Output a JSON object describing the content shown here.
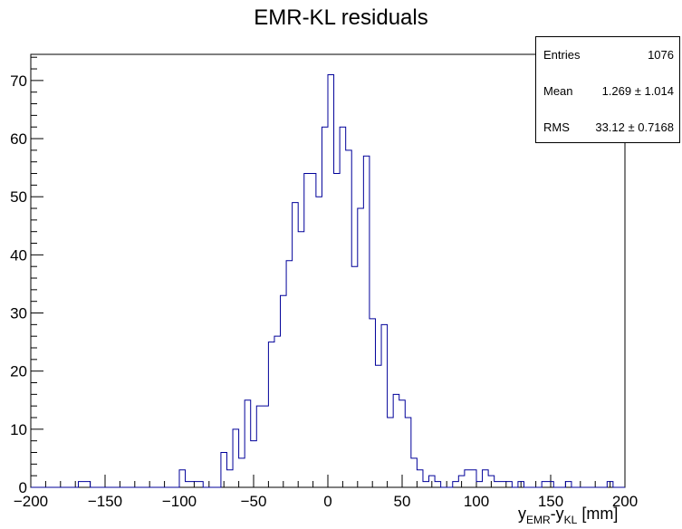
{
  "chart_data": {
    "type": "bar",
    "title": "EMR-KL residuals",
    "xlabel": {
      "main": "y",
      "sub1": "EMR",
      "mid": "-y",
      "sub2": "KL",
      "tail": " [mm]"
    },
    "ylabel": "",
    "xlim": [
      -200,
      200
    ],
    "ylim": [
      0,
      74.5
    ],
    "bin_width": 4,
    "x_ticks": [
      -200,
      -150,
      -100,
      -50,
      0,
      50,
      100,
      150,
      200
    ],
    "y_ticks": [
      0,
      10,
      20,
      30,
      40,
      50,
      60,
      70
    ],
    "line_color": "#000099",
    "grid": false,
    "bins": [
      [
        -168,
        1
      ],
      [
        -164,
        1
      ],
      [
        -100,
        3
      ],
      [
        -96,
        1
      ],
      [
        -92,
        1
      ],
      [
        -88,
        1
      ],
      [
        -72,
        6
      ],
      [
        -68,
        3
      ],
      [
        -64,
        10
      ],
      [
        -60,
        5
      ],
      [
        -56,
        15
      ],
      [
        -52,
        8
      ],
      [
        -48,
        14
      ],
      [
        -44,
        14
      ],
      [
        -40,
        25
      ],
      [
        -36,
        26
      ],
      [
        -32,
        33
      ],
      [
        -28,
        39
      ],
      [
        -24,
        49
      ],
      [
        -20,
        44
      ],
      [
        -16,
        54
      ],
      [
        -12,
        54
      ],
      [
        -8,
        50
      ],
      [
        -4,
        62
      ],
      [
        0,
        71
      ],
      [
        4,
        54
      ],
      [
        8,
        62
      ],
      [
        12,
        58
      ],
      [
        16,
        38
      ],
      [
        20,
        48
      ],
      [
        24,
        57
      ],
      [
        28,
        29
      ],
      [
        32,
        21
      ],
      [
        36,
        28
      ],
      [
        40,
        12
      ],
      [
        44,
        16
      ],
      [
        48,
        15
      ],
      [
        52,
        12
      ],
      [
        56,
        5
      ],
      [
        60,
        3
      ],
      [
        64,
        1
      ],
      [
        68,
        2
      ],
      [
        72,
        1
      ],
      [
        84,
        1
      ],
      [
        88,
        2
      ],
      [
        92,
        3
      ],
      [
        96,
        3
      ],
      [
        100,
        1
      ],
      [
        104,
        3
      ],
      [
        108,
        2
      ],
      [
        112,
        1
      ],
      [
        116,
        1
      ],
      [
        120,
        1
      ],
      [
        128,
        1
      ],
      [
        144,
        1
      ],
      [
        148,
        1
      ],
      [
        160,
        1
      ],
      [
        188,
        1
      ]
    ]
  },
  "stats": {
    "entries_label": "Entries",
    "entries_value": "1076",
    "mean_label": "Mean",
    "mean_value": "1.269 ±  1.014",
    "rms_label": "RMS",
    "rms_value": "33.12 ± 0.7168"
  }
}
